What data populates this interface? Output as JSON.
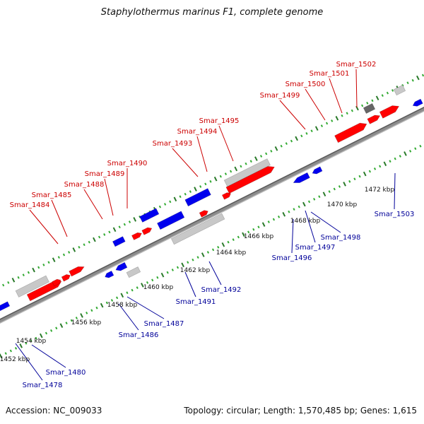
{
  "title": "Staphylothermus marinus F1, complete genome",
  "footer": {
    "accession": "Accession: NC_009033",
    "summary": "Topology: circular; Length: 1,570,485 bp; Genes: 1,615"
  },
  "colors": {
    "forward_label": "#cc0000",
    "reverse_label": "#000099",
    "forward_gene": "#ff0000",
    "reverse_gene": "#0000ee",
    "rna_gene": "#c8c8c8",
    "backbone": "#8c8c8c",
    "tick_dark": "#2a7a2a",
    "tick_light": "#33aa33"
  },
  "scale_labels": [
    {
      "label": "1452 kbp",
      "kbp": 1452
    },
    {
      "label": "1454 kbp",
      "kbp": 1454
    },
    {
      "label": "1456 kbp",
      "kbp": 1456
    },
    {
      "label": "1458 kbp",
      "kbp": 1458
    },
    {
      "label": "1460 kbp",
      "kbp": 1460
    },
    {
      "label": "1462 kbp",
      "kbp": 1462
    },
    {
      "label": "1464 kbp",
      "kbp": 1464
    },
    {
      "label": "1466 kbp",
      "kbp": 1466
    },
    {
      "label": "1468 kbp",
      "kbp": 1468
    },
    {
      "label": "1470 kbp",
      "kbp": 1470
    },
    {
      "label": "1472 kbp",
      "kbp": 1472
    }
  ],
  "forward_gene_labels": [
    "Smar_1484",
    "Smar_1485",
    "Smar_1488",
    "Smar_1489",
    "Smar_1490",
    "Smar_1493",
    "Smar_1494",
    "Smar_1495",
    "Smar_1499",
    "Smar_1500",
    "Smar_1501",
    "Smar_1502"
  ],
  "reverse_gene_labels": [
    "Smar_1478",
    "Smar_1480",
    "Smar_1486",
    "Smar_1487",
    "Smar_1491",
    "Smar_1492",
    "Smar_1496",
    "Smar_1497",
    "Smar_1498",
    "Smar_1503"
  ]
}
